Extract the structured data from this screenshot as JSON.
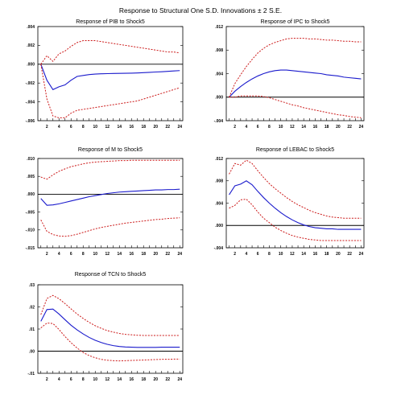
{
  "figure": {
    "title": "Response to Structural One S.D. Innovations ± 2 S.E."
  },
  "colors": {
    "response": "#1a1acc",
    "band": "#cc1a1a",
    "axis": "#000000"
  },
  "chart_data": [
    {
      "type": "line",
      "title": "Response of PIB to Shock5",
      "x": [
        1,
        2,
        3,
        4,
        5,
        6,
        7,
        8,
        9,
        10,
        11,
        12,
        13,
        14,
        15,
        16,
        17,
        18,
        19,
        20,
        21,
        22,
        23,
        24
      ],
      "x_ticks": [
        2,
        4,
        6,
        8,
        10,
        12,
        14,
        16,
        18,
        20,
        22,
        24
      ],
      "ylim": [
        -0.006,
        0.004
      ],
      "y_ticks": [
        0.004,
        0.002,
        0.0,
        -0.002,
        -0.004,
        -0.006
      ],
      "y_tick_labels": [
        ".004",
        ".002",
        ".000",
        "-.002",
        "-.004",
        "-.006"
      ],
      "series": [
        {
          "role": "response",
          "values": [
            0.0,
            -0.0017,
            -0.0027,
            -0.0024,
            -0.0022,
            -0.0017,
            -0.0013,
            -0.0012,
            -0.0011,
            -0.00105,
            -0.00102,
            -0.001,
            -0.00098,
            -0.00097,
            -0.00096,
            -0.00095,
            -0.00093,
            -0.0009,
            -0.00087,
            -0.00083,
            -0.0008,
            -0.00076,
            -0.00072,
            -0.00068
          ]
        },
        {
          "role": "upper",
          "values": [
            0.0,
            0.0009,
            0.0003,
            0.0011,
            0.0014,
            0.0019,
            0.0023,
            0.0025,
            0.0025,
            0.0025,
            0.0024,
            0.0023,
            0.0022,
            0.0021,
            0.002,
            0.0019,
            0.0018,
            0.0017,
            0.0016,
            0.0015,
            0.0014,
            0.0013,
            0.0013,
            0.0012
          ]
        },
        {
          "role": "lower",
          "values": [
            0.0,
            -0.0037,
            -0.0055,
            -0.0057,
            -0.0057,
            -0.0052,
            -0.0049,
            -0.0048,
            -0.0047,
            -0.0046,
            -0.0045,
            -0.0044,
            -0.0043,
            -0.0042,
            -0.0041,
            -0.004,
            -0.0039,
            -0.0037,
            -0.0035,
            -0.0033,
            -0.0031,
            -0.0029,
            -0.0027,
            -0.0025
          ]
        }
      ]
    },
    {
      "type": "line",
      "title": "Response of IPC to Shock5",
      "x": [
        1,
        2,
        3,
        4,
        5,
        6,
        7,
        8,
        9,
        10,
        11,
        12,
        13,
        14,
        15,
        16,
        17,
        18,
        19,
        20,
        21,
        22,
        23,
        24
      ],
      "x_ticks": [
        2,
        4,
        6,
        8,
        10,
        12,
        14,
        16,
        18,
        20,
        22,
        24
      ],
      "ylim": [
        -0.004,
        0.012
      ],
      "y_ticks": [
        0.012,
        0.008,
        0.004,
        0.0,
        -0.004
      ],
      "y_tick_labels": [
        ".012",
        ".008",
        ".004",
        ".000",
        "-.004"
      ],
      "series": [
        {
          "role": "response",
          "values": [
            0.0,
            0.001,
            0.0018,
            0.0025,
            0.0031,
            0.0036,
            0.004,
            0.0043,
            0.0045,
            0.0046,
            0.0046,
            0.0045,
            0.0044,
            0.0043,
            0.0042,
            0.0041,
            0.004,
            0.0038,
            0.0037,
            0.0036,
            0.0034,
            0.0033,
            0.0032,
            0.0031
          ]
        },
        {
          "role": "upper",
          "values": [
            0.0,
            0.0023,
            0.0038,
            0.0052,
            0.0064,
            0.0075,
            0.0083,
            0.0089,
            0.0093,
            0.0096,
            0.0099,
            0.01,
            0.01,
            0.01,
            0.0099,
            0.0099,
            0.0098,
            0.0097,
            0.0097,
            0.0096,
            0.0095,
            0.0095,
            0.0094,
            0.0094
          ]
        },
        {
          "role": "lower",
          "values": [
            0.0,
            0.0,
            0.0002,
            0.0002,
            0.0002,
            0.0002,
            0.0001,
            -0.0001,
            -0.0004,
            -0.0007,
            -0.001,
            -0.0013,
            -0.0015,
            -0.0018,
            -0.002,
            -0.0022,
            -0.0024,
            -0.0026,
            -0.0028,
            -0.003,
            -0.0031,
            -0.0033,
            -0.0034,
            -0.0035
          ]
        }
      ]
    },
    {
      "type": "line",
      "title": "Response of M to Shock5",
      "x": [
        1,
        2,
        3,
        4,
        5,
        6,
        7,
        8,
        9,
        10,
        11,
        12,
        13,
        14,
        15,
        16,
        17,
        18,
        19,
        20,
        21,
        22,
        23,
        24
      ],
      "x_ticks": [
        2,
        4,
        6,
        8,
        10,
        12,
        14,
        16,
        18,
        20,
        22,
        24
      ],
      "ylim": [
        -0.015,
        0.01
      ],
      "y_ticks": [
        0.01,
        0.005,
        0.0,
        -0.005,
        -0.01,
        -0.015
      ],
      "y_tick_labels": [
        ".010",
        ".005",
        ".000",
        "-.005",
        "-.010",
        "-.015"
      ],
      "series": [
        {
          "role": "response",
          "values": [
            -0.0012,
            -0.0031,
            -0.003,
            -0.0027,
            -0.0023,
            -0.0019,
            -0.0015,
            -0.0011,
            -0.0007,
            -0.0004,
            -0.0001,
            0.0002,
            0.0004,
            0.0006,
            0.0007,
            0.0008,
            0.0009,
            0.001,
            0.0011,
            0.0012,
            0.0012,
            0.0013,
            0.0013,
            0.0014
          ]
        },
        {
          "role": "upper",
          "values": [
            0.0048,
            0.0042,
            0.0054,
            0.0064,
            0.0071,
            0.0077,
            0.0081,
            0.0085,
            0.0088,
            0.009,
            0.0091,
            0.0092,
            0.0093,
            0.0094,
            0.0094,
            0.0095,
            0.0095,
            0.0095,
            0.0095,
            0.0095,
            0.0095,
            0.0095,
            0.0095,
            0.0095
          ]
        },
        {
          "role": "lower",
          "values": [
            -0.0072,
            -0.0104,
            -0.0113,
            -0.0117,
            -0.0118,
            -0.0116,
            -0.0112,
            -0.0107,
            -0.0102,
            -0.0097,
            -0.0093,
            -0.009,
            -0.0087,
            -0.0084,
            -0.0081,
            -0.0079,
            -0.0077,
            -0.0075,
            -0.0073,
            -0.0071,
            -0.007,
            -0.0068,
            -0.0067,
            -0.0066
          ]
        }
      ]
    },
    {
      "type": "line",
      "title": "Response of LEBAC to Shock5",
      "x": [
        1,
        2,
        3,
        4,
        5,
        6,
        7,
        8,
        9,
        10,
        11,
        12,
        13,
        14,
        15,
        16,
        17,
        18,
        19,
        20,
        21,
        22,
        23,
        24
      ],
      "x_ticks": [
        2,
        4,
        6,
        8,
        10,
        12,
        14,
        16,
        18,
        20,
        22,
        24
      ],
      "ylim": [
        -0.004,
        0.012
      ],
      "y_ticks": [
        0.012,
        0.008,
        0.004,
        0.0,
        -0.004
      ],
      "y_tick_labels": [
        ".012",
        ".008",
        ".004",
        ".000",
        "-.004"
      ],
      "series": [
        {
          "role": "response",
          "values": [
            0.0055,
            0.0071,
            0.0074,
            0.008,
            0.0073,
            0.0061,
            0.005,
            0.004,
            0.0031,
            0.0023,
            0.0016,
            0.001,
            0.0005,
            0.0001,
            -0.0002,
            -0.0004,
            -0.0005,
            -0.0006,
            -0.0006,
            -0.0007,
            -0.0007,
            -0.0007,
            -0.0007,
            -0.0007
          ]
        },
        {
          "role": "upper",
          "values": [
            0.0092,
            0.0111,
            0.0108,
            0.0117,
            0.0111,
            0.0098,
            0.0086,
            0.0075,
            0.0066,
            0.0058,
            0.005,
            0.0043,
            0.0037,
            0.0032,
            0.0027,
            0.0023,
            0.002,
            0.0017,
            0.0015,
            0.0014,
            0.0013,
            0.0013,
            0.0013,
            0.0013
          ]
        },
        {
          "role": "lower",
          "values": [
            0.0031,
            0.0036,
            0.0046,
            0.0047,
            0.0037,
            0.0024,
            0.0013,
            0.0005,
            -0.0003,
            -0.0009,
            -0.0014,
            -0.0018,
            -0.0021,
            -0.0023,
            -0.0025,
            -0.0026,
            -0.0027,
            -0.0027,
            -0.0027,
            -0.0027,
            -0.0027,
            -0.0027,
            -0.0027,
            -0.0027
          ]
        }
      ]
    },
    {
      "type": "line",
      "title": "Response of TCN to Shock5",
      "x": [
        1,
        2,
        3,
        4,
        5,
        6,
        7,
        8,
        9,
        10,
        11,
        12,
        13,
        14,
        15,
        16,
        17,
        18,
        19,
        20,
        21,
        22,
        23,
        24
      ],
      "x_ticks": [
        2,
        4,
        6,
        8,
        10,
        12,
        14,
        16,
        18,
        20,
        22,
        24
      ],
      "ylim": [
        -0.01,
        0.03
      ],
      "y_ticks": [
        0.03,
        0.02,
        0.01,
        0.0,
        -0.01
      ],
      "y_tick_labels": [
        ".03",
        ".02",
        ".01",
        ".00",
        "-.01"
      ],
      "series": [
        {
          "role": "response",
          "values": [
            0.0135,
            0.0188,
            0.019,
            0.0168,
            0.0142,
            0.0117,
            0.0096,
            0.0078,
            0.0062,
            0.0049,
            0.0039,
            0.0031,
            0.0025,
            0.0021,
            0.0019,
            0.0018,
            0.0017,
            0.0017,
            0.0017,
            0.0017,
            0.0018,
            0.0018,
            0.0018,
            0.0018
          ]
        },
        {
          "role": "upper",
          "values": [
            0.0165,
            0.0238,
            0.0252,
            0.0237,
            0.0215,
            0.0191,
            0.0168,
            0.0148,
            0.013,
            0.0115,
            0.0103,
            0.0093,
            0.0086,
            0.008,
            0.0076,
            0.0074,
            0.0072,
            0.0071,
            0.0071,
            0.0071,
            0.0071,
            0.0071,
            0.0071,
            0.0071
          ]
        },
        {
          "role": "lower",
          "values": [
            0.0105,
            0.0127,
            0.0125,
            0.0098,
            0.0066,
            0.0038,
            0.0014,
            -0.0006,
            -0.002,
            -0.003,
            -0.0037,
            -0.0041,
            -0.0043,
            -0.0044,
            -0.0043,
            -0.0042,
            -0.0041,
            -0.004,
            -0.0039,
            -0.0038,
            -0.0037,
            -0.0037,
            -0.0036,
            -0.0036
          ]
        }
      ]
    }
  ]
}
